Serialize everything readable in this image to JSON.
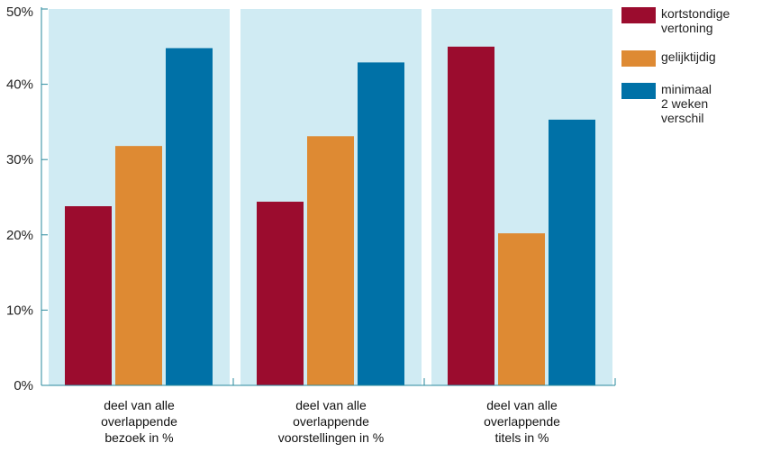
{
  "chart_data": {
    "type": "bar",
    "categories": [
      "deel van alle\noverlappende\nbezoek in %",
      "deel van alle\noverlappende\nvoorstellingen in %",
      "deel van alle\noverlappende\ntitels in %"
    ],
    "series": [
      {
        "name": "kortstondige\nvertoning",
        "color": "#9b0c2e",
        "values": [
          23.8,
          24.4,
          45.0
        ]
      },
      {
        "name": "gelijktijdig",
        "color": "#de8a33",
        "values": [
          31.8,
          33.1,
          20.2
        ]
      },
      {
        "name": "minimaal\n2 weken verschil",
        "color": "#0071a7",
        "values": [
          44.8,
          42.9,
          35.3
        ]
      }
    ],
    "ylim": [
      0,
      50
    ],
    "yticks": [
      "0%",
      "10%",
      "20%",
      "30%",
      "40%",
      "50%"
    ],
    "panel_background": "#d0ebf3",
    "axis_color": "#2a8a9e",
    "legend": "right",
    "grid": false
  }
}
